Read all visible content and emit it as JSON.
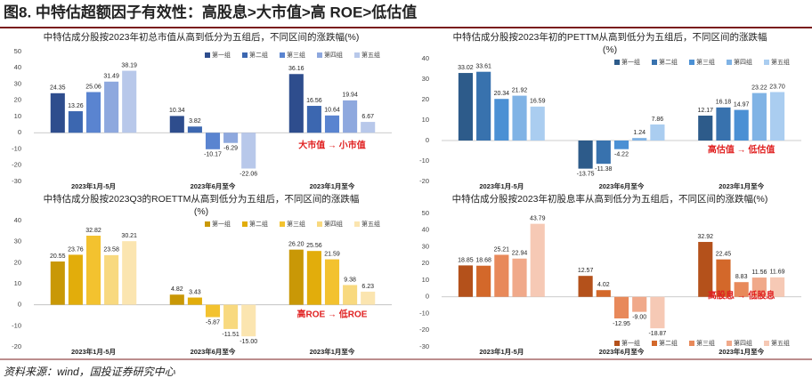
{
  "header": {
    "title": "图8. 中特估超额因子有效性：高股息>大市值>高 ROE>低估值"
  },
  "source": "资料来源：wind，国投证券研究中心",
  "chart_data": [
    {
      "type": "bar",
      "title": "中特估成分股按2023年初总市值从高到低分为五组后，不同区间的涨跌幅(%)",
      "categories": [
        "2023年1月-5月",
        "2023年6月至今",
        "2023年1月至今"
      ],
      "series": [
        {
          "name": "第一组",
          "color": "#2e4d8d",
          "values": [
            24.35,
            10.34,
            36.16
          ]
        },
        {
          "name": "第二组",
          "color": "#3c67b0",
          "values": [
            13.26,
            3.82,
            16.56
          ]
        },
        {
          "name": "第三组",
          "color": "#5a84d0",
          "values": [
            25.06,
            -10.17,
            10.64
          ]
        },
        {
          "name": "第四组",
          "color": "#8ea8de",
          "values": [
            31.49,
            -6.29,
            19.94
          ]
        },
        {
          "name": "第五组",
          "color": "#b8c8ea",
          "values": [
            38.19,
            -22.06,
            6.67
          ]
        }
      ],
      "ylim": [
        -30,
        50
      ],
      "yticks": [
        -30,
        -20,
        -10,
        0,
        10,
        20,
        30,
        40,
        50
      ],
      "legend": "top-right",
      "annotation": "大市值  →  小市值"
    },
    {
      "type": "bar",
      "title": "中特估成分股按2023年初的PETTM从高到低分为五组后，不同区间的涨跌幅",
      "subtitle": "(%)",
      "categories": [
        "2023年1月-5月",
        "2023年6月至今",
        "2023年1月至今"
      ],
      "series": [
        {
          "name": "第一组",
          "color": "#2d5b8a",
          "values": [
            33.02,
            -13.75,
            12.17
          ]
        },
        {
          "name": "第二组",
          "color": "#3872ae",
          "values": [
            33.61,
            -11.38,
            16.18
          ]
        },
        {
          "name": "第三组",
          "color": "#4b90d4",
          "values": [
            20.34,
            -4.22,
            14.97
          ]
        },
        {
          "name": "第四组",
          "color": "#80b3e5",
          "values": [
            21.92,
            1.24,
            23.22
          ]
        },
        {
          "name": "第五组",
          "color": "#aacdf0",
          "values": [
            16.59,
            7.86,
            23.7
          ],
          "value_labels": [
            "16.59",
            "7.86",
            "23.70"
          ]
        }
      ],
      "ylim": [
        -20,
        40
      ],
      "yticks": [
        -20,
        -10,
        0,
        10,
        20,
        30,
        40
      ],
      "legend": "top-right",
      "annotation": "高估值  →  低估值"
    },
    {
      "type": "bar",
      "title": "中特估成分股按2023Q3的ROETTM从高到低分为五组后，不同区间的涨跌幅",
      "subtitle": "(%)",
      "categories": [
        "2023年1月-5月",
        "2023年6月至今",
        "2023年1月至今"
      ],
      "series": [
        {
          "name": "第一组",
          "color": "#c99806",
          "values": [
            20.55,
            4.82,
            26.2
          ],
          "value_labels": [
            "20.55",
            "4.82",
            "26.20"
          ]
        },
        {
          "name": "第二组",
          "color": "#e2ad0b",
          "values": [
            23.76,
            3.43,
            25.56
          ]
        },
        {
          "name": "第三组",
          "color": "#f3c22f",
          "values": [
            32.82,
            -5.87,
            21.59
          ]
        },
        {
          "name": "第四组",
          "color": "#f8d97f",
          "values": [
            23.58,
            -11.51,
            9.38
          ]
        },
        {
          "name": "第五组",
          "color": "#fbe5b0",
          "values": [
            30.21,
            -15,
            6.23
          ],
          "value_labels": [
            "30.21",
            "-15.00",
            "6.23"
          ]
        }
      ],
      "ylim": [
        -20,
        40
      ],
      "yticks": [
        -20,
        -10,
        0,
        10,
        20,
        30,
        40
      ],
      "legend": "top-right",
      "annotation": "高ROE  →  低ROE"
    },
    {
      "type": "bar",
      "title": "中特估成分股按2023年初股息率从高到低分为五组后，不同区间的涨跌幅(%)",
      "categories": [
        "2023年1月-5月",
        "2023年6月至今",
        "2023年1月至今"
      ],
      "series": [
        {
          "name": "第一组",
          "color": "#b4511b",
          "values": [
            18.85,
            12.57,
            32.92
          ]
        },
        {
          "name": "第二组",
          "color": "#d3682a",
          "values": [
            18.68,
            4.02,
            22.45
          ]
        },
        {
          "name": "第三组",
          "color": "#e8895a",
          "values": [
            25.21,
            -12.95,
            8.83
          ]
        },
        {
          "name": "第四组",
          "color": "#f0a98a",
          "values": [
            22.94,
            -9,
            11.56
          ],
          "value_labels": [
            "22.94",
            "-9.00",
            "11.56"
          ]
        },
        {
          "name": "第五组",
          "color": "#f6c9b5",
          "values": [
            43.79,
            -18.87,
            11.69
          ]
        }
      ],
      "ylim": [
        -30,
        50
      ],
      "yticks": [
        -30,
        -20,
        -10,
        0,
        10,
        20,
        30,
        40,
        50
      ],
      "legend": "bottom-right",
      "annotation": "高股息  →  低股息"
    }
  ]
}
